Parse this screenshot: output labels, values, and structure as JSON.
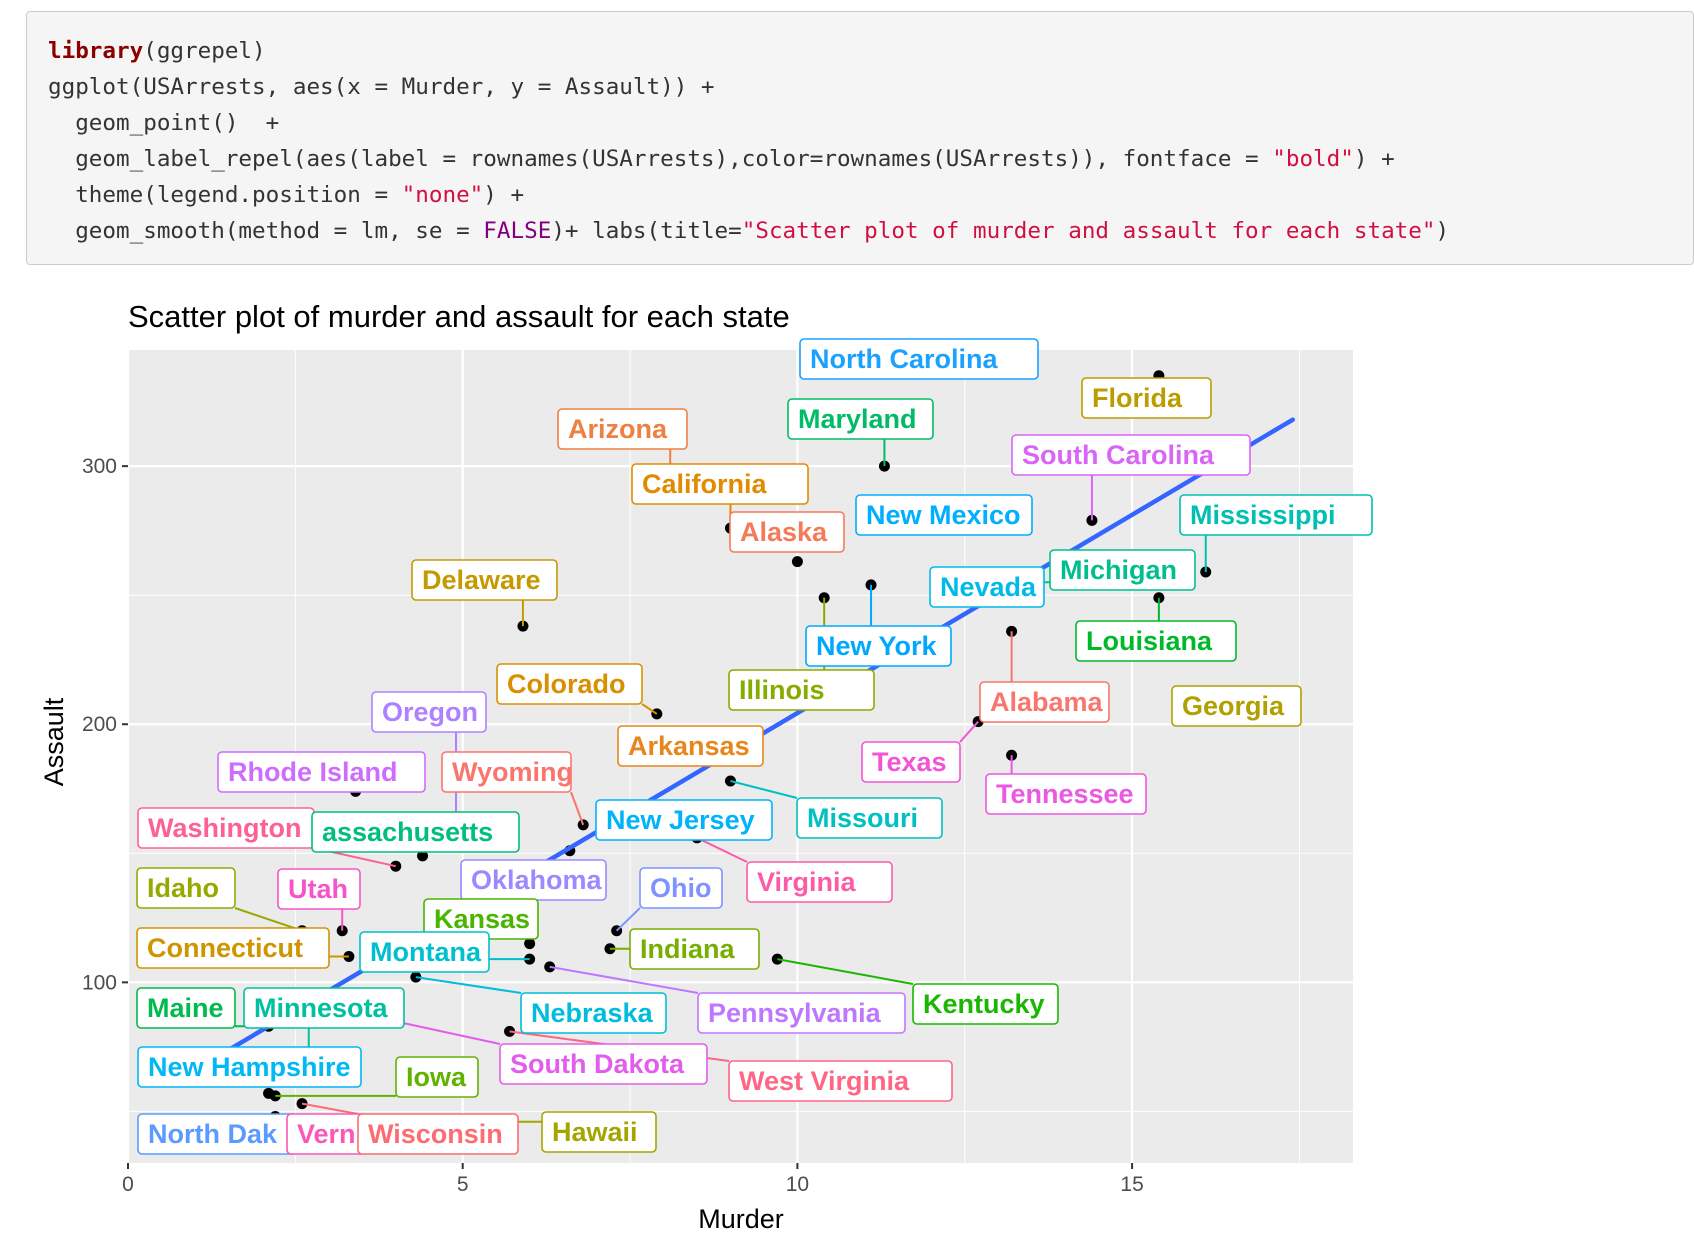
{
  "code": {
    "lines": [
      [
        {
          "t": "library",
          "c": "kw"
        },
        {
          "t": "(ggrepel)"
        }
      ],
      [
        {
          "t": "ggplot(USArrests, aes(x = Murder, y = Assault)) +"
        }
      ],
      [
        {
          "t": "  geom_point()  +"
        }
      ],
      [
        {
          "t": "  geom_label_repel(aes(label = rownames(USArrests),color=rownames(USArrests)), fontface = "
        },
        {
          "t": "\"bold\"",
          "c": "str"
        },
        {
          "t": ") +"
        }
      ],
      [
        {
          "t": "  theme(legend.position = "
        },
        {
          "t": "\"none\"",
          "c": "str"
        },
        {
          "t": ") +"
        }
      ],
      [
        {
          "t": "  geom_smooth(method = lm, se = "
        },
        {
          "t": "FALSE",
          "c": "const"
        },
        {
          "t": ")+ labs(title="
        },
        {
          "t": "\"Scatter plot of murder and assault for each state\"",
          "c": "str"
        },
        {
          "t": ")"
        }
      ]
    ]
  },
  "chart_data": {
    "type": "scatter",
    "title": "Scatter plot of murder and assault for each state",
    "xlabel": "Murder",
    "ylabel": "Assault",
    "xlim": [
      0,
      18.3
    ],
    "ylim": [
      30,
      345
    ],
    "xticks": [
      0,
      5,
      10,
      15
    ],
    "yticks": [
      100,
      200,
      300
    ],
    "grid": true,
    "legend": "none",
    "colors": {
      "panel_bg": "#ebebeb",
      "grid": "#ffffff",
      "point": "#000000",
      "smooth": "#3366ff",
      "label_bg": "#ffffff"
    },
    "smooth_line": {
      "x": [
        0.8,
        17.4
      ],
      "y": [
        63,
        318
      ]
    },
    "points": [
      {
        "label": "Alabama",
        "x": 13.2,
        "y": 236,
        "color": "#f8766d"
      },
      {
        "label": "Alaska",
        "x": 10.0,
        "y": 263,
        "color": "#f37b59"
      },
      {
        "label": "Arizona",
        "x": 8.1,
        "y": 294,
        "color": "#ed8141"
      },
      {
        "label": "Arkansas",
        "x": 8.8,
        "y": 190,
        "color": "#e7861b"
      },
      {
        "label": "California",
        "x": 9.0,
        "y": 276,
        "color": "#e08b00"
      },
      {
        "label": "Colorado",
        "x": 7.9,
        "y": 204,
        "color": "#d89000"
      },
      {
        "label": "Connecticut",
        "x": 3.3,
        "y": 110,
        "color": "#cf9400"
      },
      {
        "label": "Delaware",
        "x": 5.9,
        "y": 238,
        "color": "#c59900"
      },
      {
        "label": "Florida",
        "x": 15.4,
        "y": 335,
        "color": "#bb9d00"
      },
      {
        "label": "Georgia",
        "x": 17.4,
        "y": 211,
        "color": "#b0a100"
      },
      {
        "label": "Hawaii",
        "x": 5.3,
        "y": 46,
        "color": "#a3a500"
      },
      {
        "label": "Idaho",
        "x": 2.6,
        "y": 120,
        "color": "#96a900"
      },
      {
        "label": "Illinois",
        "x": 10.4,
        "y": 249,
        "color": "#87ac00"
      },
      {
        "label": "Indiana",
        "x": 7.2,
        "y": 113,
        "color": "#76af00"
      },
      {
        "label": "Iowa",
        "x": 2.2,
        "y": 56,
        "color": "#62b200"
      },
      {
        "label": "Kansas",
        "x": 6.0,
        "y": 115,
        "color": "#48b500"
      },
      {
        "label": "Kentucky",
        "x": 9.7,
        "y": 109,
        "color": "#19b700"
      },
      {
        "label": "Louisiana",
        "x": 15.4,
        "y": 249,
        "color": "#00b92a"
      },
      {
        "label": "Maine",
        "x": 2.1,
        "y": 83,
        "color": "#00bb4e"
      },
      {
        "label": "Maryland",
        "x": 11.3,
        "y": 300,
        "color": "#00bc67"
      },
      {
        "label": "Massachusetts",
        "x": 4.4,
        "y": 149,
        "color": "#00be7c"
      },
      {
        "label": "Michigan",
        "x": 12.1,
        "y": 255,
        "color": "#00bf8f"
      },
      {
        "label": "Minnesota",
        "x": 2.7,
        "y": 72,
        "color": "#00c0a1"
      },
      {
        "label": "Mississippi",
        "x": 16.1,
        "y": 259,
        "color": "#00c0b1"
      },
      {
        "label": "Missouri",
        "x": 9.0,
        "y": 178,
        "color": "#00c0c1"
      },
      {
        "label": "Montana",
        "x": 6.0,
        "y": 109,
        "color": "#00bfcf"
      },
      {
        "label": "Nebraska",
        "x": 4.3,
        "y": 102,
        "color": "#00bddc"
      },
      {
        "label": "Nevada",
        "x": 12.2,
        "y": 252,
        "color": "#00bbe8"
      },
      {
        "label": "New Hampshire",
        "x": 2.1,
        "y": 57,
        "color": "#00b8f3"
      },
      {
        "label": "New Jersey",
        "x": 7.4,
        "y": 159,
        "color": "#00b4fc"
      },
      {
        "label": "New Mexico",
        "x": 11.4,
        "y": 285,
        "color": "#00afff"
      },
      {
        "label": "New York",
        "x": 11.1,
        "y": 254,
        "color": "#00a9ff"
      },
      {
        "label": "North Carolina",
        "x": 13.0,
        "y": 337,
        "color": "#1ba2ff"
      },
      {
        "label": "North Dakota",
        "x": 0.8,
        "y": 45,
        "color": "#5b9bff"
      },
      {
        "label": "Ohio",
        "x": 7.3,
        "y": 120,
        "color": "#7f92ff"
      },
      {
        "label": "Oklahoma",
        "x": 6.6,
        "y": 151,
        "color": "#9a89ff"
      },
      {
        "label": "Oregon",
        "x": 4.9,
        "y": 159,
        "color": "#af80ff"
      },
      {
        "label": "Pennsylvania",
        "x": 6.3,
        "y": 106,
        "color": "#c077ff"
      },
      {
        "label": "Rhode Island",
        "x": 3.4,
        "y": 174,
        "color": "#ce6dfd"
      },
      {
        "label": "South Carolina",
        "x": 14.4,
        "y": 279,
        "color": "#d965f6"
      },
      {
        "label": "South Dakota",
        "x": 3.8,
        "y": 86,
        "color": "#e35ded"
      },
      {
        "label": "Tennessee",
        "x": 13.2,
        "y": 188,
        "color": "#eb58e2"
      },
      {
        "label": "Texas",
        "x": 12.7,
        "y": 201,
        "color": "#f155d5"
      },
      {
        "label": "Utah",
        "x": 3.2,
        "y": 120,
        "color": "#f655c7"
      },
      {
        "label": "Vermont",
        "x": 2.2,
        "y": 48,
        "color": "#fa57b8"
      },
      {
        "label": "Virginia",
        "x": 8.5,
        "y": 156,
        "color": "#fc5ba8"
      },
      {
        "label": "Washington",
        "x": 4.0,
        "y": 145,
        "color": "#fd6096"
      },
      {
        "label": "West Virginia",
        "x": 5.7,
        "y": 81,
        "color": "#fd6685"
      },
      {
        "label": "Wisconsin",
        "x": 2.6,
        "y": 53,
        "color": "#fb6d73"
      },
      {
        "label": "Wyoming",
        "x": 6.8,
        "y": 161,
        "color": "#f8766d"
      }
    ],
    "labels": [
      {
        "text": "North Carolina",
        "color": "#1ba2ff",
        "pt": "North Carolina"
      },
      {
        "text": "Florida",
        "color": "#bb9d00",
        "pt": "Florida"
      },
      {
        "text": "Arizona",
        "color": "#ed8141",
        "pt": "Arizona"
      },
      {
        "text": "Maryland",
        "color": "#00bc67",
        "pt": "Maryland"
      },
      {
        "text": "South Carolina",
        "color": "#d965f6",
        "pt": "South Carolina"
      },
      {
        "text": "California",
        "color": "#e08b00",
        "pt": "California"
      },
      {
        "text": "New Mexico",
        "color": "#00afff",
        "pt": "New Mexico"
      },
      {
        "text": "Mississippi",
        "color": "#00c0b1",
        "pt": "Mississippi"
      },
      {
        "text": "Michigan",
        "color": "#00bf8f",
        "pt": "Michigan"
      },
      {
        "text": "Alaska",
        "color": "#f37b59",
        "pt": "Alaska"
      },
      {
        "text": "Delaware",
        "color": "#c59900",
        "pt": "Delaware"
      },
      {
        "text": "Nevada",
        "color": "#00bbe8",
        "pt": "Nevada"
      },
      {
        "text": "New York",
        "color": "#00a9ff",
        "pt": "New York"
      },
      {
        "text": "Louisiana",
        "color": "#00b92a",
        "pt": "Louisiana"
      },
      {
        "text": "Colorado",
        "color": "#d89000",
        "pt": "Colorado"
      },
      {
        "text": "Illinois",
        "color": "#87ac00",
        "pt": "Illinois"
      },
      {
        "text": "Alabama",
        "color": "#f8766d",
        "pt": "Alabama"
      },
      {
        "text": "Georgia",
        "color": "#b0a100",
        "pt": "Georgia"
      },
      {
        "text": "Oregon",
        "color": "#af80ff",
        "pt": "Oregon"
      },
      {
        "text": "Arkansas",
        "color": "#e7861b",
        "pt": "Arkansas"
      },
      {
        "text": "Texas",
        "color": "#f155d5",
        "pt": "Texas"
      },
      {
        "text": "Rhode Island",
        "color": "#ce6dfd",
        "pt": "Rhode Island"
      },
      {
        "text": "Wyoming",
        "color": "#f8766d",
        "pt": "Wyoming"
      },
      {
        "text": "Tennessee",
        "color": "#eb58e2",
        "pt": "Tennessee"
      },
      {
        "text": "Missouri",
        "color": "#00c0c1",
        "pt": "Missouri"
      },
      {
        "text": "New Jersey",
        "color": "#00b4fc",
        "pt": "New Jersey"
      },
      {
        "text": "Washington",
        "color": "#fd6096",
        "pt": "Washington"
      },
      {
        "text": "assachusetts",
        "color": "#00be7c",
        "pt": "Massachusetts"
      },
      {
        "text": "Virginia",
        "color": "#fc5ba8",
        "pt": "Virginia"
      },
      {
        "text": "Oklahoma",
        "color": "#9a89ff",
        "pt": "Oklahoma"
      },
      {
        "text": "Ohio",
        "color": "#7f92ff",
        "pt": "Ohio"
      },
      {
        "text": "Idaho",
        "color": "#96a900",
        "pt": "Idaho"
      },
      {
        "text": "Utah",
        "color": "#f655c7",
        "pt": "Utah"
      },
      {
        "text": "Kansas",
        "color": "#48b500",
        "pt": "Kansas"
      },
      {
        "text": "Indiana",
        "color": "#76af00",
        "pt": "Indiana"
      },
      {
        "text": "Connecticut",
        "color": "#cf9400",
        "pt": "Connecticut"
      },
      {
        "text": "Montana",
        "color": "#00bfcf",
        "pt": "Montana"
      },
      {
        "text": "Kentucky",
        "color": "#19b700",
        "pt": "Kentucky"
      },
      {
        "text": "Maine",
        "color": "#00bb4e",
        "pt": "Maine"
      },
      {
        "text": "Minnesota",
        "color": "#00c0a1",
        "pt": "Minnesota"
      },
      {
        "text": "Nebraska",
        "color": "#00bddc",
        "pt": "Nebraska"
      },
      {
        "text": "Pennsylvania",
        "color": "#c077ff",
        "pt": "Pennsylvania"
      },
      {
        "text": "South Dakota",
        "color": "#e35ded",
        "pt": "South Dakota"
      },
      {
        "text": "New Hampshire",
        "color": "#00b8f3",
        "pt": "New Hampshire"
      },
      {
        "text": "Iowa",
        "color": "#62b200",
        "pt": "Iowa"
      },
      {
        "text": "West Virginia",
        "color": "#fd6685",
        "pt": "West Virginia"
      },
      {
        "text": "Hawaii",
        "color": "#a3a500",
        "pt": "Hawaii"
      },
      {
        "text": "North Dak",
        "color": "#5b9bff",
        "pt": "North Dakota"
      },
      {
        "text": "Vern",
        "color": "#fa57b8",
        "pt": "Vermont"
      },
      {
        "text": "Wisconsin",
        "color": "#fb6d73",
        "pt": "Wisconsin"
      }
    ]
  }
}
